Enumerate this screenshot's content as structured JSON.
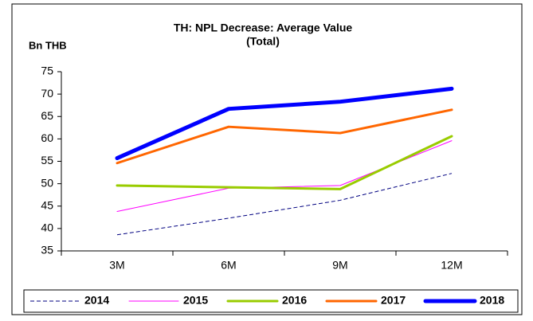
{
  "chart_data": {
    "type": "line",
    "title": [
      "TH: NPL Decrease: Average Value",
      "(Total)"
    ],
    "y_label": "Bn THB",
    "categories": [
      "3M",
      "6M",
      "9M",
      "12M"
    ],
    "series": [
      {
        "name": "2014",
        "color": "#000080",
        "line_width": 1,
        "dashed": true,
        "values": [
          38.6,
          42.3,
          46.3,
          52.3
        ]
      },
      {
        "name": "2015",
        "color": "#ff00ff",
        "line_width": 1,
        "dashed": false,
        "values": [
          43.8,
          49.0,
          49.6,
          59.6
        ]
      },
      {
        "name": "2016",
        "color": "#99cc00",
        "line_width": 3,
        "dashed": false,
        "values": [
          49.6,
          49.2,
          48.8,
          60.6
        ]
      },
      {
        "name": "2017",
        "color": "#ff6600",
        "line_width": 3,
        "dashed": false,
        "values": [
          54.6,
          62.7,
          61.3,
          66.5
        ]
      },
      {
        "name": "2018",
        "color": "#0000ff",
        "line_width": 5,
        "dashed": false,
        "values": [
          55.7,
          66.7,
          68.3,
          71.2
        ]
      }
    ],
    "ylim": [
      35,
      75
    ],
    "yticks": [
      35,
      40,
      45,
      50,
      55,
      60,
      65,
      70,
      75
    ],
    "grid": false,
    "legend": "bottom"
  }
}
